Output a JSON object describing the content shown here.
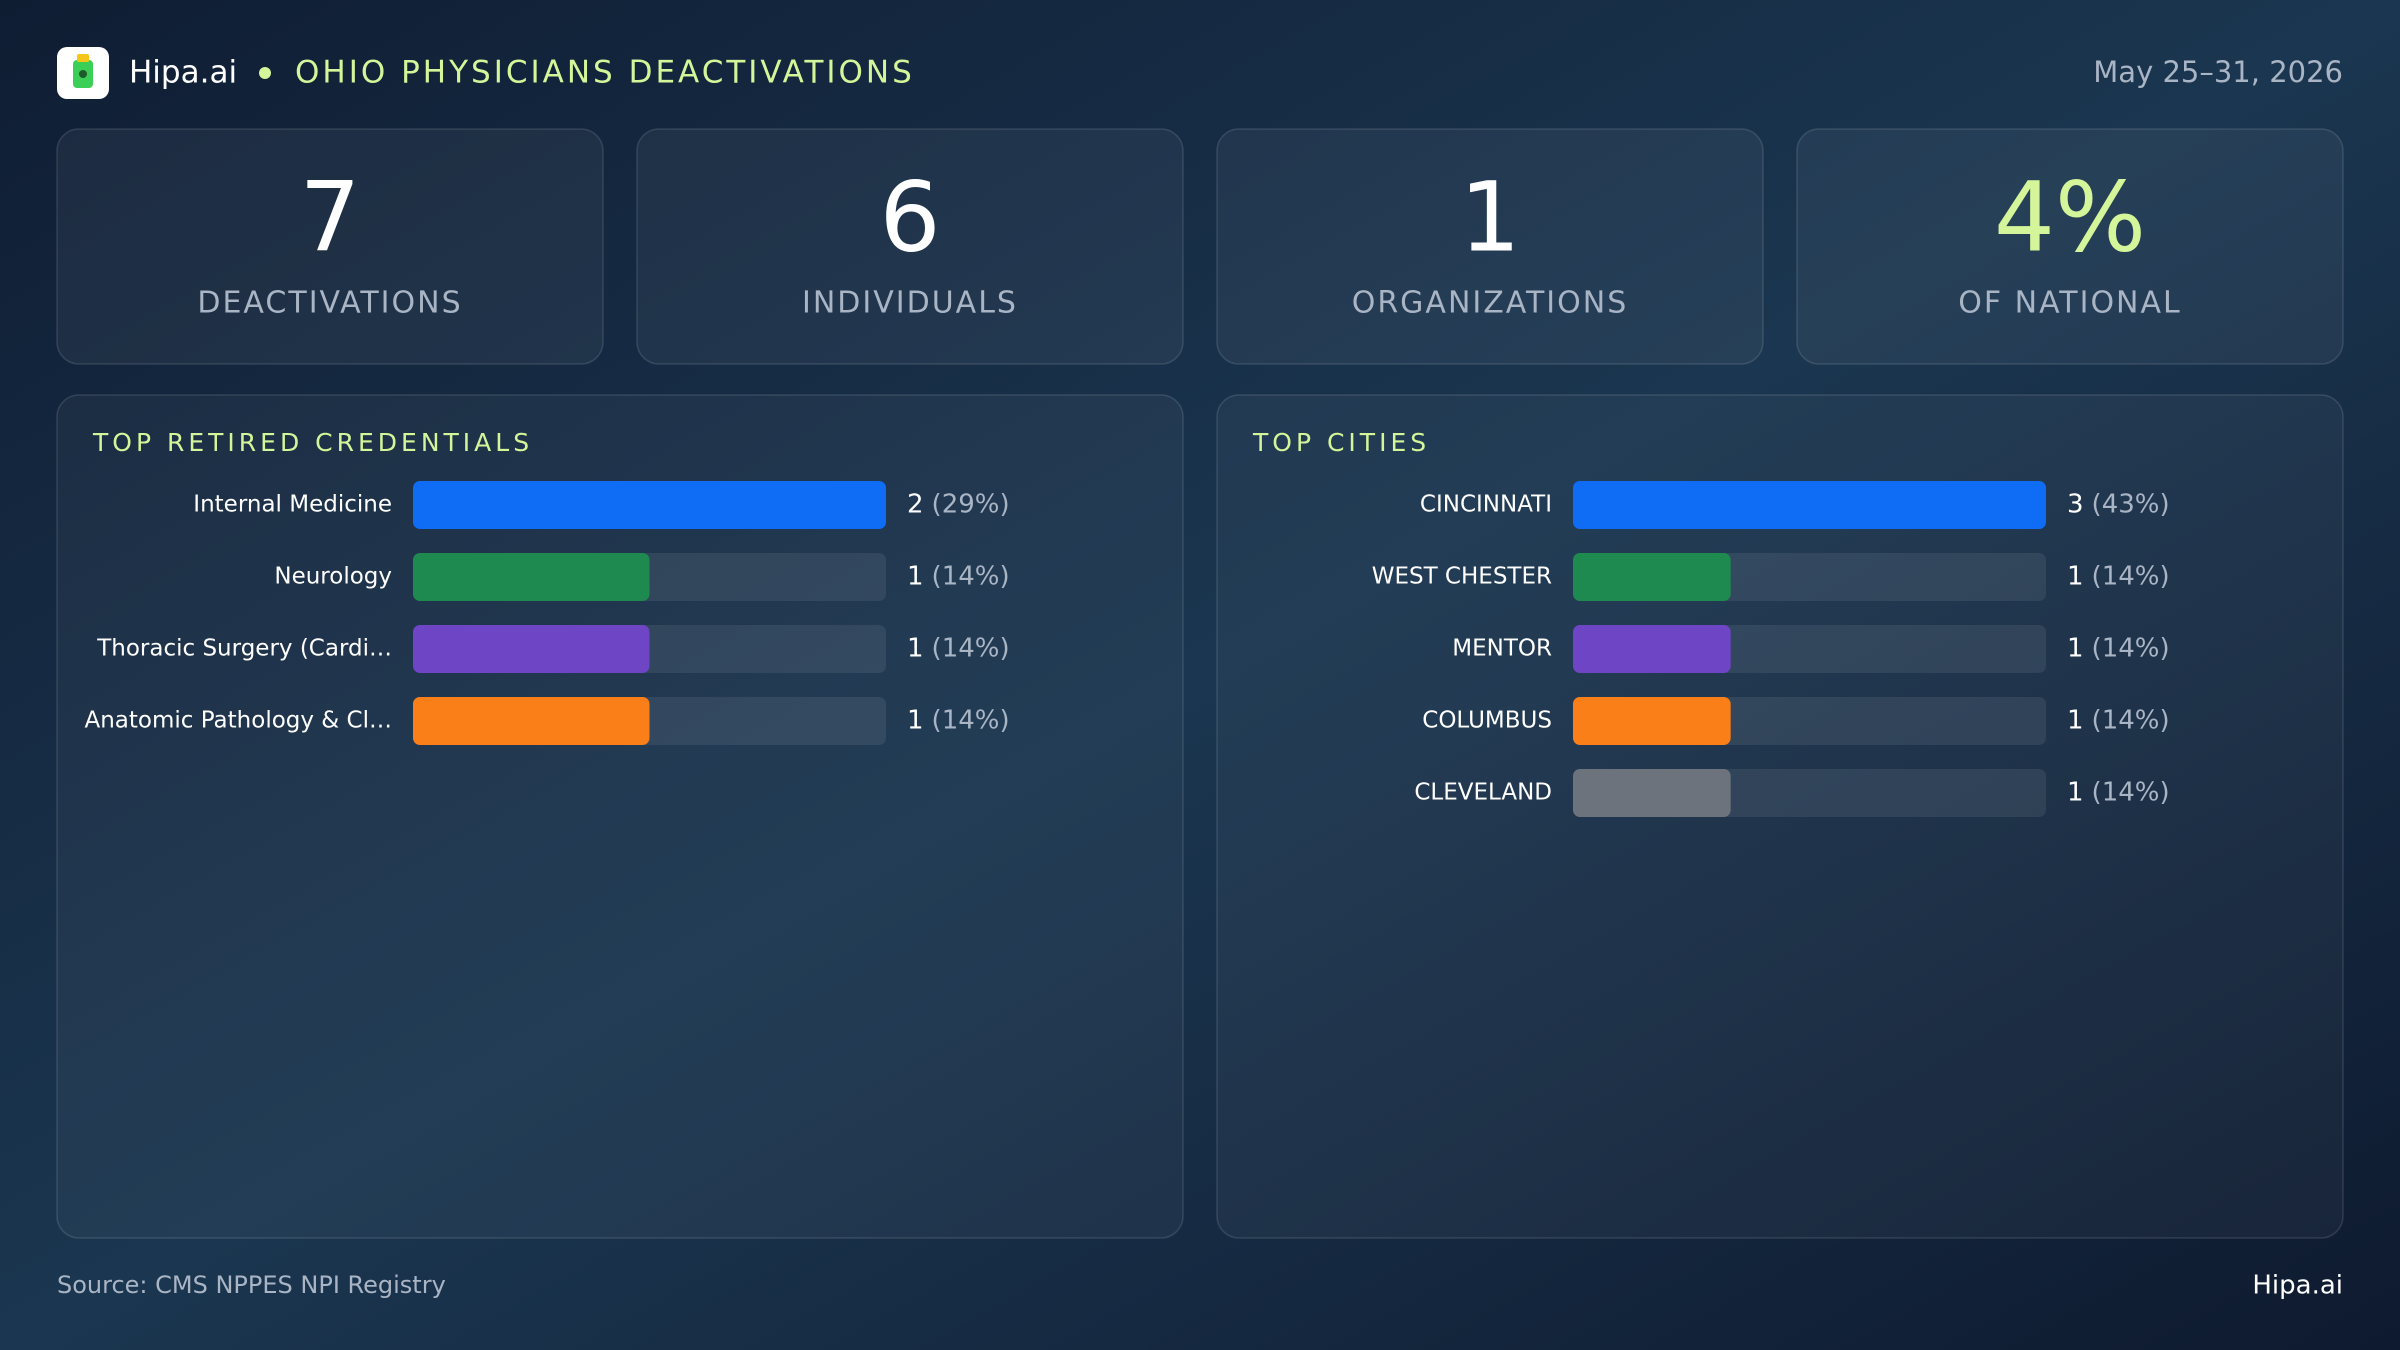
{
  "header": {
    "brand": "Hipa.ai",
    "title": "OHIO PHYSICIANS DEACTIVATIONS",
    "date": "May 25–31, 2026"
  },
  "stats": [
    {
      "value": 7,
      "label": "DEACTIVATIONS"
    },
    {
      "value": 6,
      "label": "INDIVIDUALS"
    },
    {
      "value": 1,
      "label": "ORGANIZATIONS"
    },
    {
      "value": "4%",
      "label": "OF NATIONAL"
    }
  ],
  "chart_data": [
    {
      "type": "bar",
      "orientation": "horizontal",
      "title": "TOP RETIRED CREDENTIALS",
      "categories": [
        "Internal Medicine",
        "Neurology",
        "Thoracic Surgery (Cardi…",
        "Anatomic Pathology & Cl…"
      ],
      "values": [
        2,
        1,
        1,
        1
      ],
      "percent_labels": [
        "(29%)",
        "(14%)",
        "(14%)",
        "(14%)"
      ],
      "colors": [
        "#0f6cf5",
        "#1e8a50",
        "#6e45c4",
        "#fa7f18"
      ],
      "xlim": [
        0,
        2
      ]
    },
    {
      "type": "bar",
      "orientation": "horizontal",
      "title": "TOP CITIES",
      "categories": [
        "CINCINNATI",
        "WEST CHESTER",
        "MENTOR",
        "COLUMBUS",
        "CLEVELAND"
      ],
      "values": [
        3,
        1,
        1,
        1,
        1
      ],
      "percent_labels": [
        "(43%)",
        "(14%)",
        "(14%)",
        "(14%)",
        "(14%)"
      ],
      "colors": [
        "#0f6cf5",
        "#1e8a50",
        "#6e45c4",
        "#fa7f18",
        "#6c737c"
      ],
      "xlim": [
        0,
        3
      ]
    }
  ],
  "footer": {
    "source": "Source: CMS NPPES NPI Registry",
    "brand": "Hipa.ai"
  }
}
